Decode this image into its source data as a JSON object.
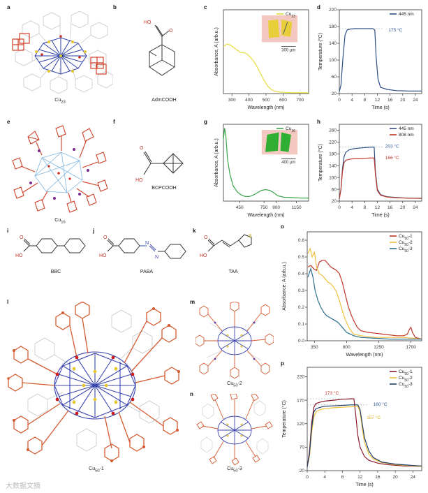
{
  "panels": {
    "a": {
      "label": "a",
      "caption_main": "Cu",
      "caption_sub": "23"
    },
    "b": {
      "label": "b",
      "molecule": "AdmCOOH",
      "atom_o": "O",
      "atom_ho": "HO"
    },
    "e": {
      "label": "e",
      "caption_main": "Cu",
      "caption_sub": "16"
    },
    "f": {
      "label": "f",
      "molecule": "BCPCOOH",
      "atom_o": "O",
      "atom_ho": "HO"
    },
    "i": {
      "label": "i",
      "molecule": "BBC",
      "atom_o": "O",
      "atom_ho": "HO"
    },
    "j": {
      "label": "j",
      "molecule": "PABA",
      "atom_o": "O",
      "atom_ho": "HO",
      "atom_n1": "N",
      "atom_n2": "N"
    },
    "k": {
      "label": "k",
      "molecule": "TAA",
      "atom_o": "O",
      "atom_ho": "HO",
      "atom_s": "S"
    },
    "l": {
      "label": "l",
      "caption_main": "Cu",
      "caption_sub": "50",
      "caption_suffix": "-1"
    },
    "m": {
      "label": "m",
      "caption_main": "Cu",
      "caption_sub": "50",
      "caption_suffix": "-2"
    },
    "n": {
      "label": "n",
      "caption_main": "Cu",
      "caption_sub": "50",
      "caption_suffix": "-3"
    }
  },
  "chart_data": [
    {
      "id": "c",
      "type": "line",
      "xlabel": "Wavelength (nm)",
      "ylabel": "Absorbance, A (arb.u.)",
      "xlim": [
        250,
        750
      ],
      "ylim": [
        0,
        1
      ],
      "xticks": [
        300,
        400,
        500,
        600,
        700
      ],
      "yticks": [],
      "grid": false,
      "legend": "top-right",
      "scalebar": "300 µm",
      "series": [
        {
          "name_main": "Cu",
          "name_sub": "23",
          "color": "#e6dc3a",
          "x": [
            250,
            270,
            290,
            310,
            330,
            350,
            370,
            390,
            410,
            430,
            450,
            470,
            490,
            510,
            530,
            550,
            570,
            600,
            650,
            700,
            750
          ],
          "y": [
            0.56,
            0.59,
            0.58,
            0.55,
            0.52,
            0.49,
            0.49,
            0.47,
            0.43,
            0.38,
            0.31,
            0.23,
            0.15,
            0.09,
            0.05,
            0.03,
            0.02,
            0.015,
            0.01,
            0.01,
            0.01
          ]
        }
      ]
    },
    {
      "id": "d",
      "type": "line",
      "xlabel": "Time (s)",
      "ylabel": "Temperature (°C)",
      "xlim": [
        0,
        26
      ],
      "ylim": [
        20,
        220
      ],
      "xticks": [
        0,
        4,
        8,
        12,
        16,
        20,
        24
      ],
      "yticks": [
        20,
        60,
        100,
        140,
        180,
        220
      ],
      "grid": false,
      "legend": "top-right",
      "annotations": [
        {
          "text": "175 °C",
          "x": 15.5,
          "y": 172,
          "color": "#2f5597"
        }
      ],
      "reflines": [
        {
          "y": 175,
          "x0": 0,
          "x1": 14
        }
      ],
      "series": [
        {
          "name": "445 nm",
          "color": "#2f4e86",
          "x": [
            0,
            0.5,
            1.2,
            1.8,
            2.5,
            3.5,
            5,
            8,
            10.5,
            11.2,
            11.6,
            12.2,
            13,
            15,
            18,
            22,
            26
          ],
          "y": [
            25,
            40,
            110,
            160,
            172,
            174,
            175,
            175,
            175,
            172,
            110,
            55,
            35,
            30,
            27,
            26,
            26
          ]
        }
      ]
    },
    {
      "id": "g",
      "type": "line",
      "xlabel": "Wavelength (nm)",
      "ylabel": "Absorbance, A (arb.u.)",
      "xlim": [
        250,
        1300
      ],
      "ylim": [
        0,
        1
      ],
      "xticks": [
        450,
        750,
        900,
        1150
      ],
      "yticks": [],
      "grid": false,
      "legend": "top-right",
      "scalebar": "400 µm",
      "series": [
        {
          "name_main": "Cu",
          "name_sub": "16",
          "color": "#3aa64a",
          "x": [
            250,
            265,
            280,
            300,
            330,
            370,
            420,
            470,
            520,
            570,
            620,
            670,
            720,
            770,
            820,
            870,
            920,
            1000,
            1100,
            1200,
            1300
          ],
          "y": [
            0.8,
            0.95,
            0.85,
            0.55,
            0.35,
            0.2,
            0.12,
            0.08,
            0.06,
            0.06,
            0.08,
            0.11,
            0.14,
            0.15,
            0.14,
            0.11,
            0.07,
            0.05,
            0.045,
            0.04,
            0.04
          ]
        }
      ]
    },
    {
      "id": "h",
      "type": "line",
      "xlabel": "Time (s)",
      "ylabel": "Temperature (°C)",
      "xlim": [
        0,
        26
      ],
      "ylim": [
        20,
        280
      ],
      "xticks": [
        0,
        4,
        8,
        12,
        16,
        20,
        24
      ],
      "yticks": [
        20,
        60,
        100,
        140,
        180,
        220,
        260
      ],
      "grid": false,
      "legend": "top-right",
      "annotations": [
        {
          "text": "203 °C",
          "x": 14.5,
          "y": 205,
          "color": "#2f5597"
        },
        {
          "text": "166 °C",
          "x": 14.5,
          "y": 166,
          "color": "#c0392b"
        }
      ],
      "reflines": [
        {
          "y": 203,
          "x0": 0,
          "x1": 14
        }
      ],
      "series": [
        {
          "name": "445 nm",
          "color": "#2f4e86",
          "x": [
            0,
            0.5,
            1,
            1.5,
            2,
            3,
            4,
            5,
            7,
            9,
            10.5,
            11,
            11.4,
            12,
            13,
            15,
            18,
            22,
            26
          ],
          "y": [
            28,
            60,
            130,
            170,
            185,
            193,
            196,
            198,
            200,
            202,
            203,
            203,
            120,
            60,
            42,
            35,
            32,
            30,
            30
          ]
        },
        {
          "name": "808 nm",
          "color": "#c0392b",
          "x": [
            0,
            0.5,
            1,
            1.5,
            2,
            3,
            4,
            6,
            8,
            10,
            11,
            11.4,
            12,
            13,
            15,
            18,
            22,
            26
          ],
          "y": [
            28,
            60,
            120,
            150,
            158,
            161,
            163,
            164,
            165,
            166,
            166,
            110,
            55,
            40,
            34,
            31,
            30,
            29
          ]
        }
      ]
    },
    {
      "id": "o",
      "type": "line",
      "xlabel": "Wavelength (nm)",
      "ylabel": "Absorbance, A (arb.u.)",
      "xlim": [
        250,
        1850
      ],
      "ylim": [
        0,
        0.65
      ],
      "xticks": [
        350,
        800,
        1250,
        1700
      ],
      "yticks": [
        0.0,
        0.1,
        0.2,
        0.3,
        0.4,
        0.5,
        0.6
      ],
      "grid": false,
      "legend": "top-right",
      "series": [
        {
          "name_main": "Cu",
          "name_sub": "50",
          "name_suffix": "-1",
          "color": "#c0392b",
          "x": [
            260,
            300,
            340,
            380,
            420,
            460,
            500,
            540,
            580,
            620,
            660,
            700,
            740,
            780,
            820,
            860,
            900,
            950,
            1000,
            1100,
            1200,
            1300,
            1400,
            1500,
            1600,
            1650,
            1680,
            1700,
            1720,
            1760,
            1850
          ],
          "y": [
            0.44,
            0.45,
            0.43,
            0.42,
            0.47,
            0.48,
            0.48,
            0.46,
            0.44,
            0.43,
            0.42,
            0.4,
            0.35,
            0.28,
            0.21,
            0.16,
            0.12,
            0.08,
            0.06,
            0.05,
            0.045,
            0.04,
            0.035,
            0.03,
            0.03,
            0.04,
            0.07,
            0.08,
            0.05,
            0.02,
            0.01
          ]
        },
        {
          "name_main": "Cu",
          "name_sub": "50",
          "name_suffix": "-2",
          "color": "#f0c040",
          "x": [
            260,
            290,
            320,
            350,
            380,
            420,
            460,
            500,
            540,
            580,
            620,
            660,
            700,
            740,
            780,
            820,
            860,
            900,
            1000,
            1200,
            1400,
            1600,
            1850
          ],
          "y": [
            0.52,
            0.55,
            0.5,
            0.53,
            0.44,
            0.4,
            0.39,
            0.37,
            0.35,
            0.34,
            0.32,
            0.29,
            0.24,
            0.18,
            0.13,
            0.09,
            0.06,
            0.04,
            0.03,
            0.02,
            0.02,
            0.02,
            0.01
          ]
        },
        {
          "name_main": "Cu",
          "name_sub": "50",
          "name_suffix": "-3",
          "color": "#2e6f8e",
          "x": [
            260,
            300,
            330,
            360,
            400,
            440,
            480,
            520,
            560,
            600,
            640,
            680,
            720,
            760,
            800,
            850,
            900,
            1000,
            1200,
            1400,
            1600,
            1850
          ],
          "y": [
            0.38,
            0.43,
            0.38,
            0.3,
            0.24,
            0.2,
            0.17,
            0.15,
            0.14,
            0.13,
            0.12,
            0.11,
            0.09,
            0.07,
            0.05,
            0.04,
            0.03,
            0.02,
            0.015,
            0.01,
            0.01,
            0.01
          ]
        }
      ]
    },
    {
      "id": "p",
      "type": "line",
      "xlabel": "Time (s)",
      "ylabel": "Temperature (°C)",
      "xlim": [
        0,
        26
      ],
      "ylim": [
        20,
        240
      ],
      "xticks": [
        0,
        4,
        8,
        12,
        16,
        20,
        24
      ],
      "yticks": [
        20,
        70,
        120,
        170,
        220
      ],
      "grid": false,
      "legend": "top-right",
      "annotations": [
        {
          "text": "173 °C",
          "x": 4,
          "y": 185,
          "color": "#c0392b"
        },
        {
          "text": "160 °C",
          "x": 15,
          "y": 161,
          "color": "#2f5597"
        },
        {
          "text": "157 °C",
          "x": 13.5,
          "y": 133,
          "color": "#e0b020"
        }
      ],
      "reflines": [
        {
          "y": 173,
          "x0": 0,
          "x1": 11
        },
        {
          "y": 160,
          "x0": 0,
          "x1": 14
        }
      ],
      "series": [
        {
          "name_main": "Cu",
          "name_sub": "50",
          "name_suffix": "-1",
          "color": "#8b1a2b",
          "x": [
            0,
            0.5,
            1,
            1.5,
            2,
            3,
            4,
            6,
            8,
            10,
            10.6,
            11,
            11.5,
            12,
            13,
            14,
            16,
            18,
            22,
            26
          ],
          "y": [
            28,
            60,
            120,
            155,
            163,
            166,
            168,
            170,
            172,
            173,
            173,
            140,
            95,
            70,
            50,
            42,
            36,
            33,
            30,
            29
          ]
        },
        {
          "name_main": "Cu",
          "name_sub": "50",
          "name_suffix": "-2",
          "color": "#f0c040",
          "x": [
            0,
            0.5,
            1,
            1.5,
            2,
            3,
            4,
            6,
            8,
            10,
            11.5,
            12,
            12.5,
            13,
            14,
            15,
            17,
            20,
            24,
            26
          ],
          "y": [
            28,
            50,
            100,
            135,
            145,
            150,
            152,
            154,
            155,
            156,
            157,
            145,
            110,
            80,
            55,
            45,
            37,
            33,
            30,
            29
          ]
        },
        {
          "name_main": "Cu",
          "name_sub": "50",
          "name_suffix": "-3",
          "color": "#1f3d66",
          "x": [
            0,
            0.5,
            1,
            1.5,
            2,
            3,
            4,
            6,
            8,
            10,
            11.5,
            12,
            12.5,
            13,
            14,
            15,
            17,
            20,
            24,
            26
          ],
          "y": [
            28,
            55,
            110,
            145,
            152,
            155,
            157,
            158,
            159,
            160,
            160,
            150,
            120,
            90,
            62,
            48,
            38,
            34,
            31,
            30
          ]
        }
      ]
    }
  ],
  "watermark": "大数据文摘"
}
